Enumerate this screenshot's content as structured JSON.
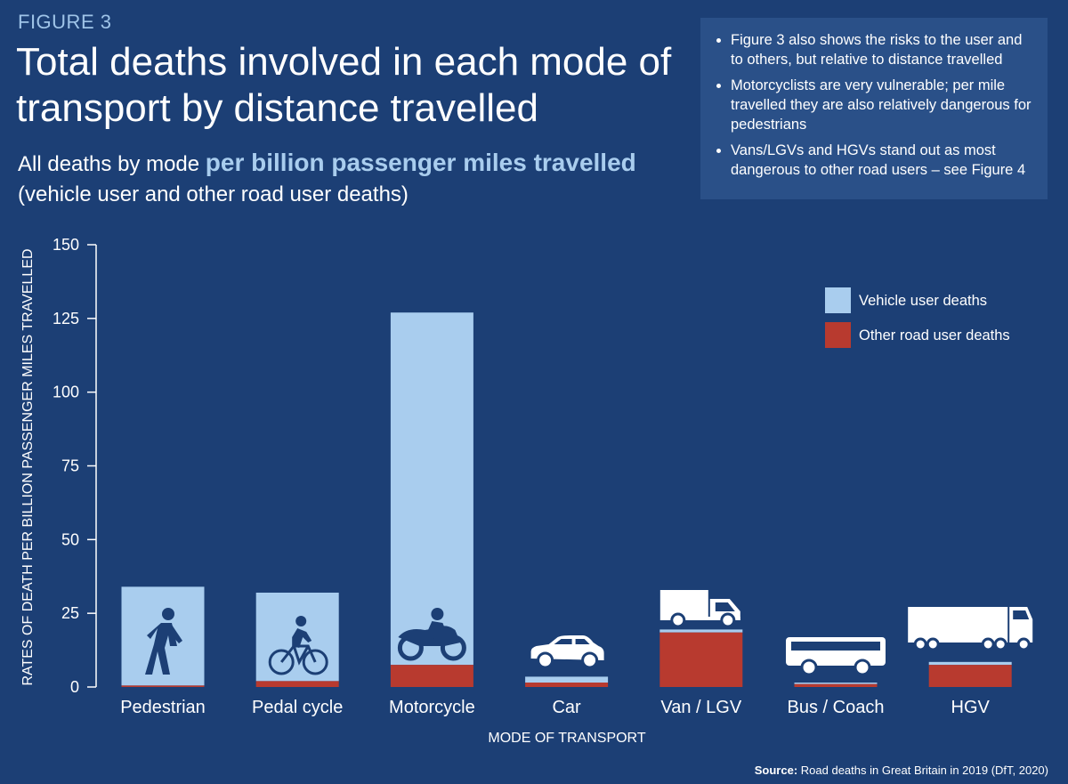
{
  "header": {
    "figure_label": "FIGURE 3",
    "title": "Total deaths involved in each mode of transport by distance travelled",
    "subtitle_prefix": "All deaths by mode ",
    "subtitle_highlight": "per billion passenger miles travelled",
    "subtitle_suffix": "(vehicle user and other road user deaths)"
  },
  "notes": [
    "Figure 3 also shows the risks to the user and to others, but relative to distance travelled",
    "Motorcyclists are very vulnerable; per mile travelled they are also relatively dangerous for pedestrians",
    "Vans/LGVs and HGVs stand out as most dangerous to other road users – see Figure 4"
  ],
  "source": {
    "label": "Source:",
    "text": "Road deaths in Great Britain in 2019 (DfT, 2020)"
  },
  "colors": {
    "background": "#1c3f75",
    "vehicle_user": "#a9cdee",
    "other_road_user": "#b83a2f",
    "icon": "#1c3f75",
    "icon_on_dark": "#ffffff"
  },
  "chart_data": {
    "type": "bar",
    "stacked": true,
    "categories": [
      "Pedestrian",
      "Pedal cycle",
      "Motorcycle",
      "Car",
      "Van / LGV",
      "Bus / Coach",
      "HGV"
    ],
    "category_icons": [
      "walking-person-icon",
      "cyclist-icon",
      "motorcyclist-icon",
      "car-icon",
      "van-icon",
      "bus-icon",
      "hgv-truck-icon"
    ],
    "series": [
      {
        "name": "Other road user deaths",
        "values": [
          0.5,
          2,
          7.5,
          1.5,
          18.5,
          1,
          7.5
        ]
      },
      {
        "name": "Vehicle user deaths",
        "values": [
          33.5,
          30,
          119.5,
          2,
          1,
          0.5,
          1
        ]
      }
    ],
    "xlabel": "MODE OF TRANSPORT",
    "ylabel": "RATES OF DEATH PER BILLION PASSENGER MILES TRAVELLED",
    "ylim": [
      0,
      150
    ],
    "yticks": [
      0,
      25,
      50,
      75,
      100,
      125,
      150
    ],
    "legend": [
      "Vehicle user deaths",
      "Other road user deaths"
    ],
    "legend_position": "top-right",
    "grid": false
  }
}
